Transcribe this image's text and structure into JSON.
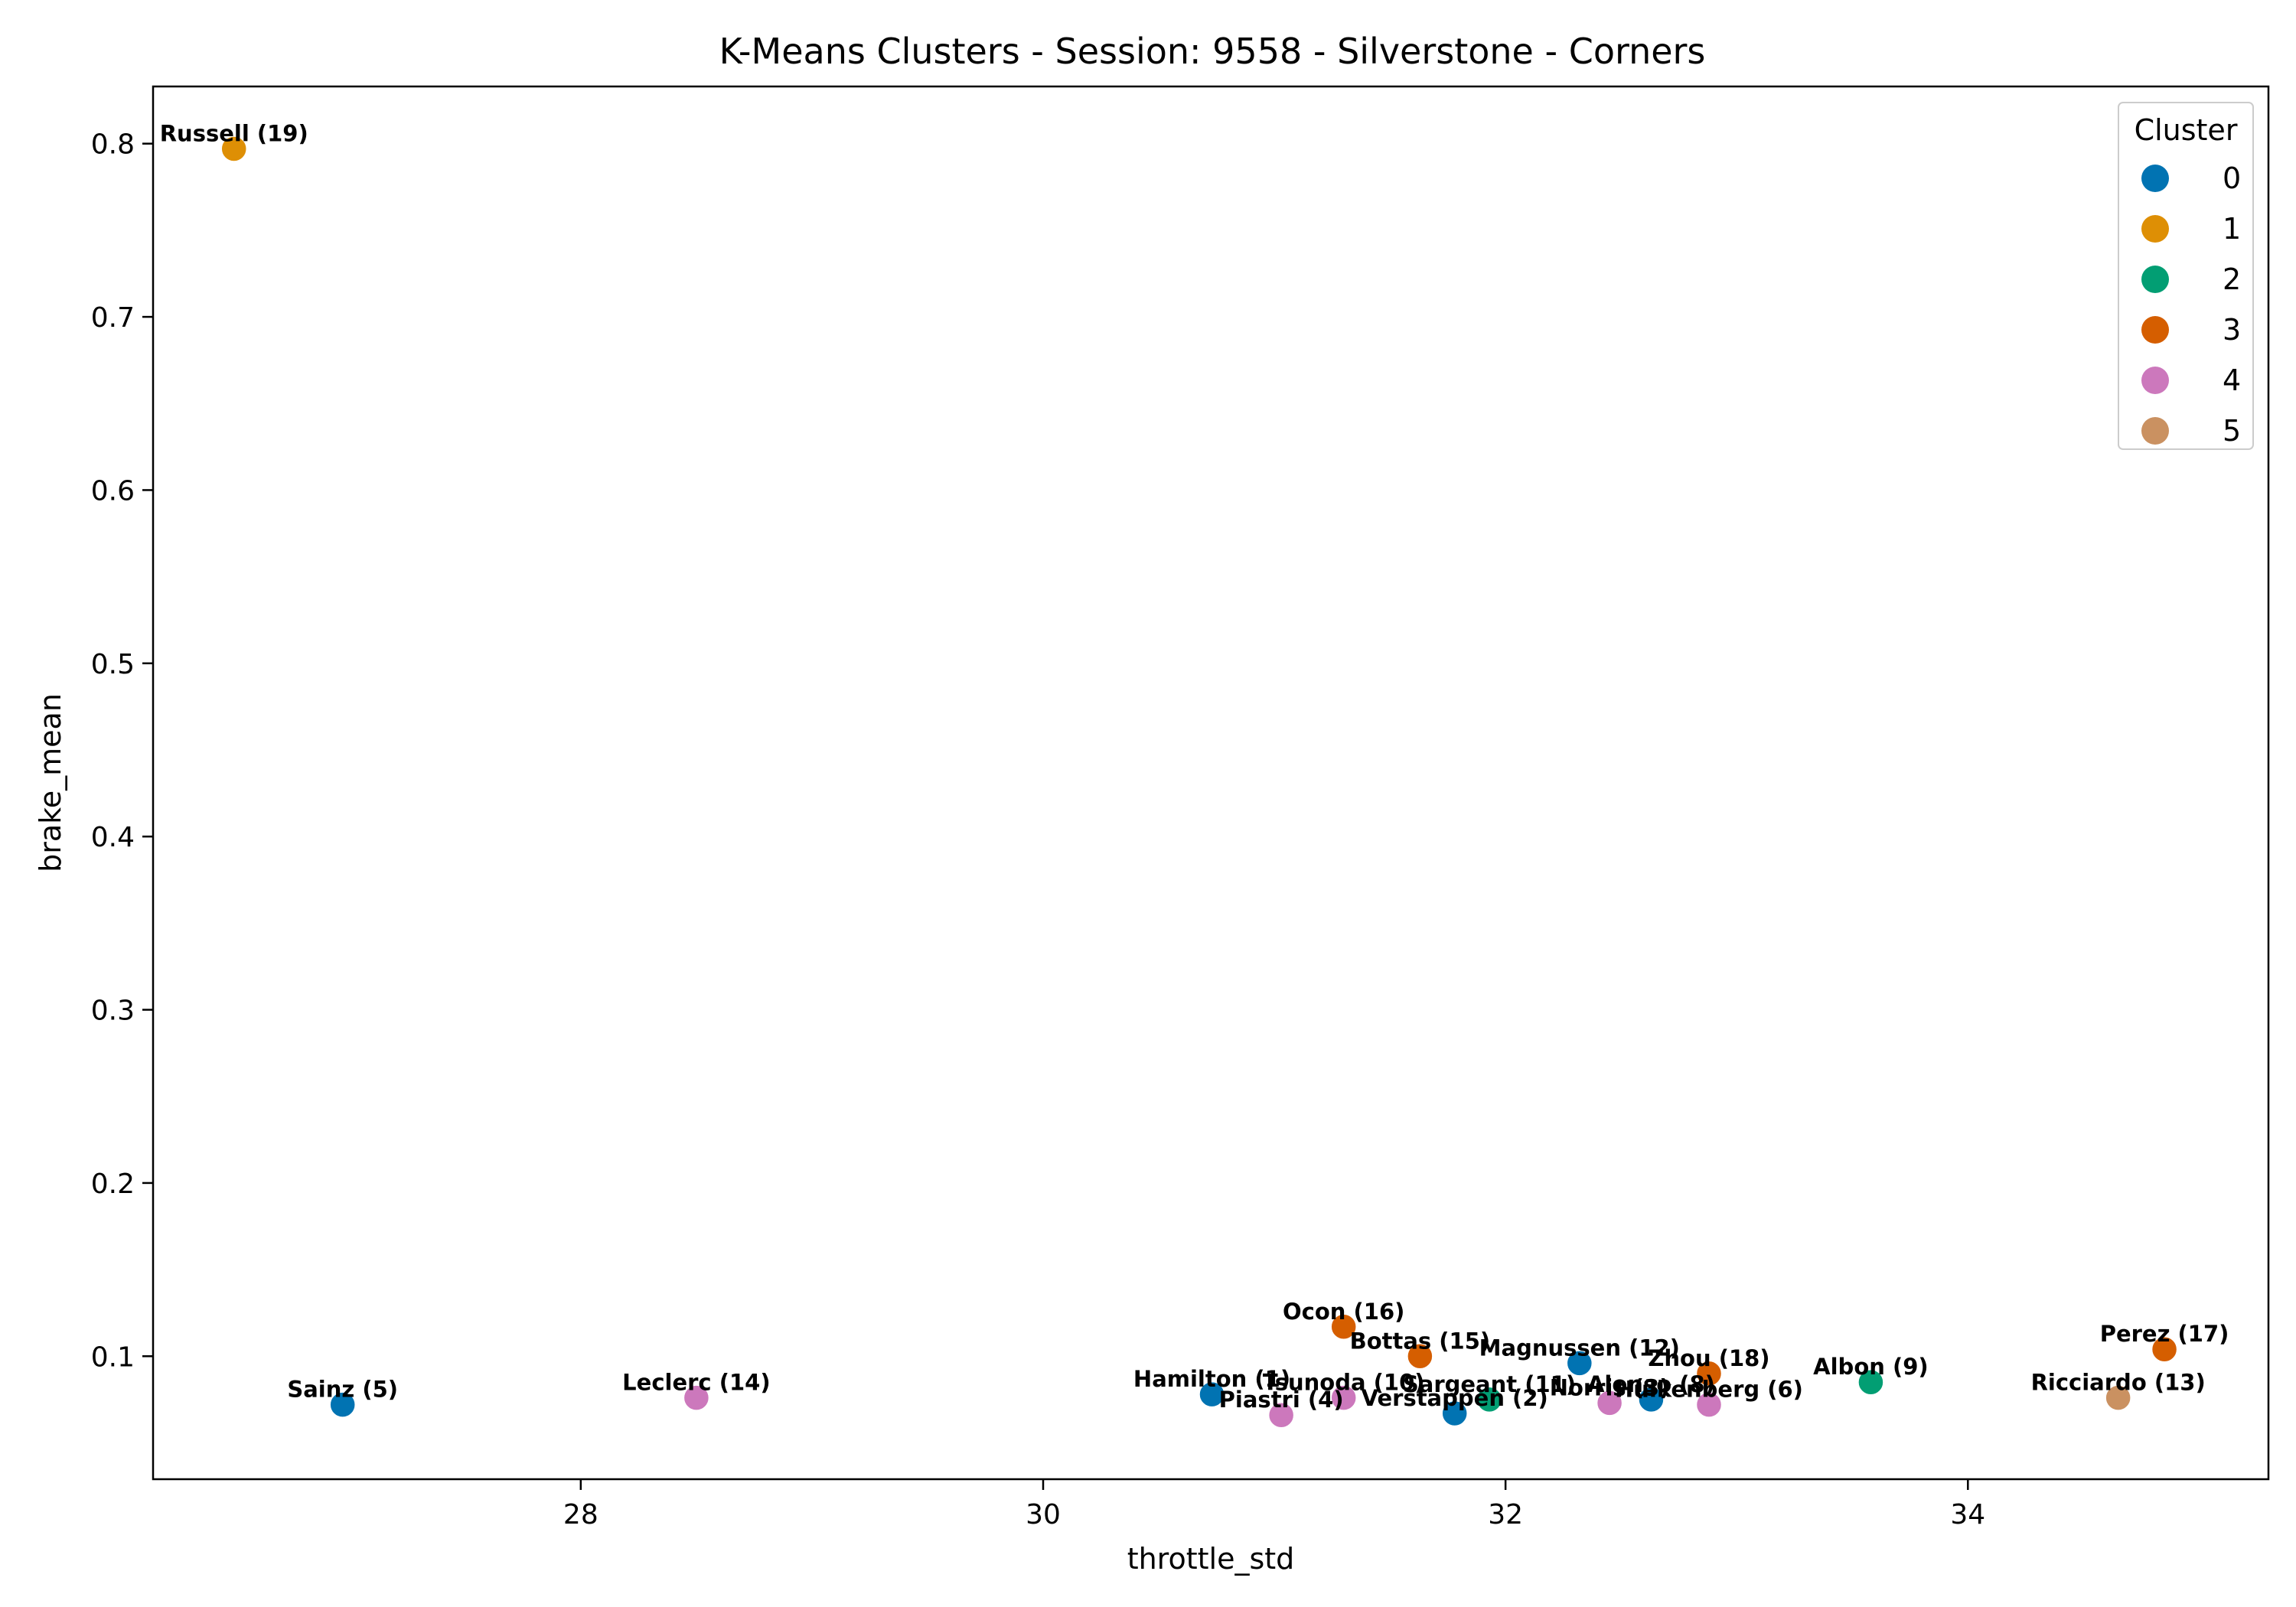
{
  "chart_data": {
    "type": "scatter",
    "title": "K-Means Clusters - Session: 9558 - Silverstone - Corners",
    "xlabel": "throttle_std",
    "ylabel": "brake_mean",
    "xlim": [
      26.15,
      35.3
    ],
    "ylim": [
      0.029,
      0.833
    ],
    "xticks": [
      28,
      30,
      32,
      34
    ],
    "yticks": [
      0.1,
      0.2,
      0.3,
      0.4,
      0.5,
      0.6,
      0.7,
      0.8
    ],
    "xtick_labels": [
      "28",
      "30",
      "32",
      "34"
    ],
    "ytick_labels": [
      "0.1",
      "0.2",
      "0.3",
      "0.4",
      "0.5",
      "0.6",
      "0.7",
      "0.8"
    ],
    "grid": false,
    "legend": {
      "title": "Cluster",
      "placement": "top-right",
      "entries": [
        {
          "label": "0",
          "color": "#0173b2"
        },
        {
          "label": "1",
          "color": "#de8f05"
        },
        {
          "label": "2",
          "color": "#029e73"
        },
        {
          "label": "3",
          "color": "#d55e00"
        },
        {
          "label": "4",
          "color": "#cc78bc"
        },
        {
          "label": "5",
          "color": "#ca9161"
        }
      ]
    },
    "points": [
      {
        "label": "Russell (19)",
        "x": 26.5,
        "y": 0.797,
        "cluster": 1
      },
      {
        "label": "Sainz (5)",
        "x": 26.97,
        "y": 0.072,
        "cluster": 0
      },
      {
        "label": "Leclerc (14)",
        "x": 28.5,
        "y": 0.076,
        "cluster": 4
      },
      {
        "label": "Hamilton (1)",
        "x": 30.73,
        "y": 0.078,
        "cluster": 0
      },
      {
        "label": "Piastri (4)",
        "x": 31.03,
        "y": 0.066,
        "cluster": 4
      },
      {
        "label": "Tsunoda (10)",
        "x": 31.3,
        "y": 0.076,
        "cluster": 4
      },
      {
        "label": "Ocon (16)",
        "x": 31.3,
        "y": 0.117,
        "cluster": 3
      },
      {
        "label": "Bottas (15)",
        "x": 31.63,
        "y": 0.1,
        "cluster": 3
      },
      {
        "label": "Verstappen (2)",
        "x": 31.78,
        "y": 0.067,
        "cluster": 0
      },
      {
        "label": "Sargeant (11)",
        "x": 31.93,
        "y": 0.075,
        "cluster": 2
      },
      {
        "label": "Magnussen (12)",
        "x": 32.32,
        "y": 0.096,
        "cluster": 0
      },
      {
        "label": "Norris (3)",
        "x": 32.45,
        "y": 0.073,
        "cluster": 4
      },
      {
        "label": "Alonso (8)",
        "x": 32.63,
        "y": 0.075,
        "cluster": 0
      },
      {
        "label": "Zhou (18)",
        "x": 32.88,
        "y": 0.09,
        "cluster": 3
      },
      {
        "label": "Hulkenberg (6)",
        "x": 32.88,
        "y": 0.072,
        "cluster": 4
      },
      {
        "label": "Albon (9)",
        "x": 33.58,
        "y": 0.085,
        "cluster": 2
      },
      {
        "label": "Ricciardo (13)",
        "x": 34.65,
        "y": 0.076,
        "cluster": 5
      },
      {
        "label": "Perez (17)",
        "x": 34.85,
        "y": 0.104,
        "cluster": 3
      }
    ]
  }
}
